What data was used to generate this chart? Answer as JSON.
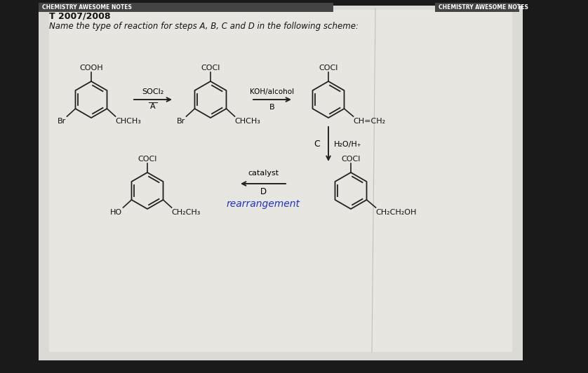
{
  "title": "T 2007/2008",
  "header_text": "CHEMISTRY AWESOME NOTES",
  "question": "Name the type of reaction for steps A, B, C and D in the following scheme:",
  "step_A_reagent": "SOCl₂",
  "step_A_label": "A",
  "step_B_reagent": "KOH/alcohol",
  "step_B_label": "B",
  "step_C_reagent": "H₂O/H₊",
  "step_C_label": "C",
  "step_D_reagent": "catalyst",
  "step_D_label": "D",
  "step_D_answer": "rearrangement",
  "font_color": "#111111",
  "blue_answer_color": "#2233bb",
  "paper_bg": "#e0ddd8",
  "dark_bg": "#1a1a1a"
}
